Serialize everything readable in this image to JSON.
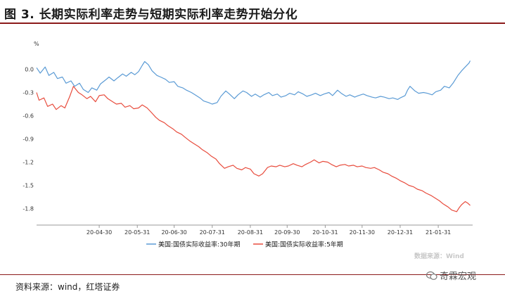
{
  "title": "图 3. 长期实际利率走势与短期实际利率走势开始分化",
  "source_note": "资料来源：wind，红塔证券",
  "watermark": "数据来源：Wind",
  "brand": "奇霖宏观",
  "chart_data": {
    "type": "line",
    "unit": "%",
    "ylim": [
      -1.95,
      0.25
    ],
    "yticks": [
      0.0,
      -0.3,
      -0.6,
      -0.9,
      -1.2,
      -1.5,
      -1.8
    ],
    "xlim": [
      "2020-03-10",
      "2021-02-28"
    ],
    "xticks": [
      "2020-04-30",
      "2020-05-31",
      "2020-06-30",
      "2020-07-31",
      "2020-08-31",
      "2020-09-30",
      "2020-10-31",
      "2020-11-30",
      "2020-12-31",
      "2021-01-31"
    ],
    "xtick_labels": [
      "20-04-30",
      "20-05-31",
      "20-06-30",
      "20-07-31",
      "20-08-31",
      "20-09-30",
      "20-10-31",
      "20-11-30",
      "20-12-31",
      "21-01-31"
    ],
    "legend_position": "bottom",
    "series": [
      {
        "name": "美国:国债实际收益率:30年期",
        "color": "#5b9bd5",
        "points": [
          [
            "2020-03-10",
            0.02
          ],
          [
            "2020-03-13",
            -0.05
          ],
          [
            "2020-03-17",
            0.03
          ],
          [
            "2020-03-20",
            -0.08
          ],
          [
            "2020-03-24",
            -0.04
          ],
          [
            "2020-03-27",
            -0.12
          ],
          [
            "2020-03-31",
            -0.1
          ],
          [
            "2020-04-03",
            -0.18
          ],
          [
            "2020-04-07",
            -0.15
          ],
          [
            "2020-04-10",
            -0.22
          ],
          [
            "2020-04-14",
            -0.18
          ],
          [
            "2020-04-17",
            -0.26
          ],
          [
            "2020-04-21",
            -0.3
          ],
          [
            "2020-04-24",
            -0.24
          ],
          [
            "2020-04-28",
            -0.27
          ],
          [
            "2020-05-01",
            -0.19
          ],
          [
            "2020-05-05",
            -0.14
          ],
          [
            "2020-05-08",
            -0.1
          ],
          [
            "2020-05-12",
            -0.15
          ],
          [
            "2020-05-15",
            -0.11
          ],
          [
            "2020-05-19",
            -0.06
          ],
          [
            "2020-05-22",
            -0.09
          ],
          [
            "2020-05-26",
            -0.04
          ],
          [
            "2020-05-29",
            -0.07
          ],
          [
            "2020-06-01",
            -0.03
          ],
          [
            "2020-06-04",
            0.05
          ],
          [
            "2020-06-06",
            0.1
          ],
          [
            "2020-06-09",
            0.06
          ],
          [
            "2020-06-12",
            -0.02
          ],
          [
            "2020-06-16",
            -0.08
          ],
          [
            "2020-06-19",
            -0.1
          ],
          [
            "2020-06-23",
            -0.13
          ],
          [
            "2020-06-26",
            -0.17
          ],
          [
            "2020-06-30",
            -0.16
          ],
          [
            "2020-07-03",
            -0.22
          ],
          [
            "2020-07-07",
            -0.24
          ],
          [
            "2020-07-10",
            -0.27
          ],
          [
            "2020-07-14",
            -0.3
          ],
          [
            "2020-07-17",
            -0.33
          ],
          [
            "2020-07-21",
            -0.37
          ],
          [
            "2020-07-24",
            -0.41
          ],
          [
            "2020-07-28",
            -0.43
          ],
          [
            "2020-07-31",
            -0.45
          ],
          [
            "2020-08-04",
            -0.43
          ],
          [
            "2020-08-07",
            -0.35
          ],
          [
            "2020-08-11",
            -0.28
          ],
          [
            "2020-08-14",
            -0.32
          ],
          [
            "2020-08-18",
            -0.38
          ],
          [
            "2020-08-21",
            -0.33
          ],
          [
            "2020-08-25",
            -0.28
          ],
          [
            "2020-08-28",
            -0.3
          ],
          [
            "2020-09-01",
            -0.35
          ],
          [
            "2020-09-04",
            -0.32
          ],
          [
            "2020-09-08",
            -0.36
          ],
          [
            "2020-09-11",
            -0.33
          ],
          [
            "2020-09-15",
            -0.3
          ],
          [
            "2020-09-18",
            -0.34
          ],
          [
            "2020-09-22",
            -0.32
          ],
          [
            "2020-09-25",
            -0.36
          ],
          [
            "2020-09-29",
            -0.34
          ],
          [
            "2020-10-02",
            -0.31
          ],
          [
            "2020-10-06",
            -0.33
          ],
          [
            "2020-10-09",
            -0.29
          ],
          [
            "2020-10-13",
            -0.32
          ],
          [
            "2020-10-16",
            -0.35
          ],
          [
            "2020-10-20",
            -0.33
          ],
          [
            "2020-10-23",
            -0.31
          ],
          [
            "2020-10-27",
            -0.34
          ],
          [
            "2020-10-30",
            -0.32
          ],
          [
            "2020-11-03",
            -0.3
          ],
          [
            "2020-11-06",
            -0.34
          ],
          [
            "2020-11-10",
            -0.27
          ],
          [
            "2020-11-13",
            -0.31
          ],
          [
            "2020-11-17",
            -0.35
          ],
          [
            "2020-11-20",
            -0.33
          ],
          [
            "2020-11-24",
            -0.36
          ],
          [
            "2020-11-27",
            -0.34
          ],
          [
            "2020-12-01",
            -0.32
          ],
          [
            "2020-12-04",
            -0.34
          ],
          [
            "2020-12-08",
            -0.36
          ],
          [
            "2020-12-11",
            -0.37
          ],
          [
            "2020-12-15",
            -0.35
          ],
          [
            "2020-12-18",
            -0.36
          ],
          [
            "2020-12-22",
            -0.38
          ],
          [
            "2020-12-25",
            -0.37
          ],
          [
            "2020-12-29",
            -0.39
          ],
          [
            "2020-12-31",
            -0.37
          ],
          [
            "2021-01-04",
            -0.34
          ],
          [
            "2021-01-06",
            -0.27
          ],
          [
            "2021-01-08",
            -0.22
          ],
          [
            "2021-01-12",
            -0.28
          ],
          [
            "2021-01-15",
            -0.31
          ],
          [
            "2021-01-19",
            -0.3
          ],
          [
            "2021-01-22",
            -0.31
          ],
          [
            "2021-01-26",
            -0.33
          ],
          [
            "2021-01-29",
            -0.29
          ],
          [
            "2021-02-02",
            -0.27
          ],
          [
            "2021-02-05",
            -0.22
          ],
          [
            "2021-02-09",
            -0.24
          ],
          [
            "2021-02-12",
            -0.18
          ],
          [
            "2021-02-16",
            -0.08
          ],
          [
            "2021-02-19",
            -0.02
          ],
          [
            "2021-02-22",
            0.03
          ],
          [
            "2021-02-25",
            0.08
          ],
          [
            "2021-02-26",
            0.11
          ]
        ]
      },
      {
        "name": "美国:国债实际收益率:5年期",
        "color": "#e84c3d",
        "points": [
          [
            "2020-03-10",
            -0.3
          ],
          [
            "2020-03-12",
            -0.4
          ],
          [
            "2020-03-16",
            -0.37
          ],
          [
            "2020-03-19",
            -0.48
          ],
          [
            "2020-03-23",
            -0.45
          ],
          [
            "2020-03-26",
            -0.52
          ],
          [
            "2020-03-30",
            -0.47
          ],
          [
            "2020-04-02",
            -0.5
          ],
          [
            "2020-04-06",
            -0.35
          ],
          [
            "2020-04-09",
            -0.22
          ],
          [
            "2020-04-13",
            -0.3
          ],
          [
            "2020-04-16",
            -0.33
          ],
          [
            "2020-04-20",
            -0.38
          ],
          [
            "2020-04-23",
            -0.35
          ],
          [
            "2020-04-27",
            -0.42
          ],
          [
            "2020-04-30",
            -0.34
          ],
          [
            "2020-05-04",
            -0.33
          ],
          [
            "2020-05-07",
            -0.38
          ],
          [
            "2020-05-11",
            -0.42
          ],
          [
            "2020-05-14",
            -0.45
          ],
          [
            "2020-05-18",
            -0.44
          ],
          [
            "2020-05-21",
            -0.49
          ],
          [
            "2020-05-25",
            -0.47
          ],
          [
            "2020-05-28",
            -0.51
          ],
          [
            "2020-06-01",
            -0.5
          ],
          [
            "2020-06-04",
            -0.46
          ],
          [
            "2020-06-08",
            -0.5
          ],
          [
            "2020-06-11",
            -0.55
          ],
          [
            "2020-06-15",
            -0.62
          ],
          [
            "2020-06-18",
            -0.66
          ],
          [
            "2020-06-22",
            -0.69
          ],
          [
            "2020-06-25",
            -0.73
          ],
          [
            "2020-06-29",
            -0.77
          ],
          [
            "2020-07-02",
            -0.81
          ],
          [
            "2020-07-06",
            -0.84
          ],
          [
            "2020-07-09",
            -0.88
          ],
          [
            "2020-07-13",
            -0.93
          ],
          [
            "2020-07-16",
            -0.96
          ],
          [
            "2020-07-20",
            -1.0
          ],
          [
            "2020-07-23",
            -1.04
          ],
          [
            "2020-07-27",
            -1.08
          ],
          [
            "2020-07-30",
            -1.12
          ],
          [
            "2020-08-03",
            -1.16
          ],
          [
            "2020-08-06",
            -1.22
          ],
          [
            "2020-08-10",
            -1.28
          ],
          [
            "2020-08-13",
            -1.26
          ],
          [
            "2020-08-17",
            -1.24
          ],
          [
            "2020-08-20",
            -1.28
          ],
          [
            "2020-08-24",
            -1.3
          ],
          [
            "2020-08-27",
            -1.27
          ],
          [
            "2020-08-31",
            -1.29
          ],
          [
            "2020-09-03",
            -1.35
          ],
          [
            "2020-09-07",
            -1.38
          ],
          [
            "2020-09-10",
            -1.35
          ],
          [
            "2020-09-14",
            -1.27
          ],
          [
            "2020-09-17",
            -1.25
          ],
          [
            "2020-09-21",
            -1.26
          ],
          [
            "2020-09-24",
            -1.24
          ],
          [
            "2020-09-28",
            -1.26
          ],
          [
            "2020-10-01",
            -1.25
          ],
          [
            "2020-10-05",
            -1.22
          ],
          [
            "2020-10-08",
            -1.24
          ],
          [
            "2020-10-12",
            -1.26
          ],
          [
            "2020-10-15",
            -1.23
          ],
          [
            "2020-10-19",
            -1.2
          ],
          [
            "2020-10-22",
            -1.17
          ],
          [
            "2020-10-26",
            -1.21
          ],
          [
            "2020-10-29",
            -1.19
          ],
          [
            "2020-11-02",
            -1.2
          ],
          [
            "2020-11-05",
            -1.23
          ],
          [
            "2020-11-09",
            -1.26
          ],
          [
            "2020-11-12",
            -1.24
          ],
          [
            "2020-11-16",
            -1.23
          ],
          [
            "2020-11-19",
            -1.25
          ],
          [
            "2020-11-23",
            -1.24
          ],
          [
            "2020-11-26",
            -1.26
          ],
          [
            "2020-11-30",
            -1.25
          ],
          [
            "2020-12-03",
            -1.27
          ],
          [
            "2020-12-07",
            -1.28
          ],
          [
            "2020-12-10",
            -1.27
          ],
          [
            "2020-12-14",
            -1.3
          ],
          [
            "2020-12-17",
            -1.33
          ],
          [
            "2020-12-21",
            -1.35
          ],
          [
            "2020-12-24",
            -1.38
          ],
          [
            "2020-12-28",
            -1.41
          ],
          [
            "2020-12-31",
            -1.44
          ],
          [
            "2021-01-04",
            -1.47
          ],
          [
            "2021-01-07",
            -1.5
          ],
          [
            "2021-01-11",
            -1.52
          ],
          [
            "2021-01-14",
            -1.55
          ],
          [
            "2021-01-18",
            -1.57
          ],
          [
            "2021-01-21",
            -1.6
          ],
          [
            "2021-01-25",
            -1.63
          ],
          [
            "2021-01-28",
            -1.66
          ],
          [
            "2021-02-01",
            -1.7
          ],
          [
            "2021-02-04",
            -1.74
          ],
          [
            "2021-02-08",
            -1.78
          ],
          [
            "2021-02-11",
            -1.82
          ],
          [
            "2021-02-15",
            -1.84
          ],
          [
            "2021-02-17",
            -1.79
          ],
          [
            "2021-02-19",
            -1.75
          ],
          [
            "2021-02-22",
            -1.71
          ],
          [
            "2021-02-24",
            -1.73
          ],
          [
            "2021-02-26",
            -1.76
          ]
        ]
      }
    ]
  }
}
